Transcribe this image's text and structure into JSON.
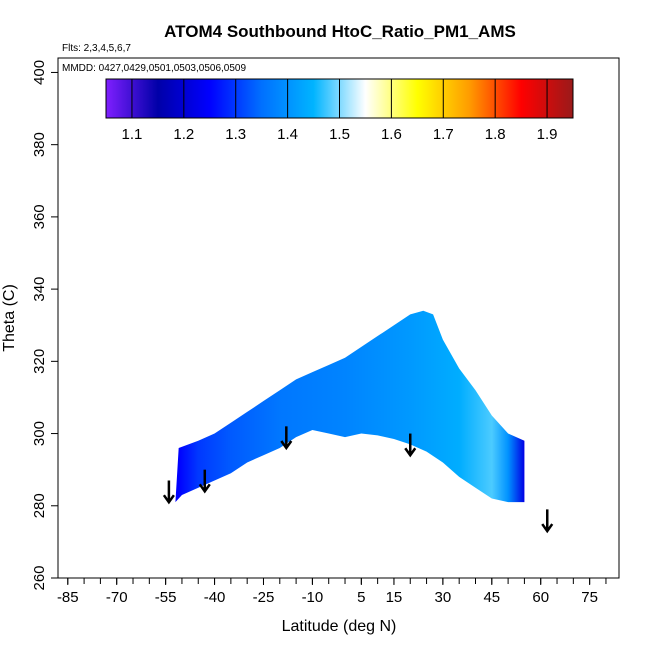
{
  "chart_data": {
    "type": "heatmap",
    "title": "ATOM4 Southbound HtoC_Ratio_PM1_AMS",
    "flights_label": "Flts: 2,3,4,5,6,7",
    "dates_label": "MMDD: 0427,0429,0501,0503,0506,0509",
    "xlabel": "Latitude (deg N)",
    "ylabel": "Theta (C)",
    "xlim": [
      -88,
      84
    ],
    "ylim": [
      260,
      404
    ],
    "x_tick_labels": [
      "-85",
      "-70",
      "-55",
      "-40",
      "-25",
      "-10",
      "5",
      "15",
      "30",
      "45",
      "60",
      "75"
    ],
    "x_tick_values": [
      -85,
      -70,
      -55,
      -40,
      -25,
      -10,
      5,
      15,
      30,
      45,
      60,
      75
    ],
    "x_minor_ticks": [
      -85,
      -80,
      -75,
      -70,
      -65,
      -60,
      -55,
      -50,
      -45,
      -40,
      -35,
      -30,
      -25,
      -20,
      -15,
      -10,
      -5,
      0,
      5,
      10,
      15,
      20,
      25,
      30,
      35,
      40,
      45,
      50,
      55,
      60,
      65,
      70,
      75,
      80
    ],
    "y_tick_values": [
      260,
      280,
      300,
      320,
      340,
      360,
      380,
      400
    ],
    "y_tick_labels": [
      "260",
      "280",
      "300",
      "320",
      "340",
      "360",
      "380",
      "400"
    ],
    "colorbar": {
      "range": [
        1.05,
        1.95
      ],
      "tick_values": [
        1.1,
        1.2,
        1.3,
        1.4,
        1.5,
        1.6,
        1.7,
        1.8,
        1.9
      ],
      "tick_labels": [
        "1.1",
        "1.2",
        "1.3",
        "1.4",
        "1.5",
        "1.6",
        "1.7",
        "1.8",
        "1.9"
      ],
      "colors": [
        "#7f1fff",
        "#0000a8",
        "#0000ff",
        "#0070ff",
        "#00b4ff",
        "#ffffff",
        "#ffff00",
        "#ff9c00",
        "#ff0000",
        "#9a1a1a"
      ]
    },
    "region_top_boundary": [
      {
        "lat": -51,
        "theta": 296
      },
      {
        "lat": -45,
        "theta": 298
      },
      {
        "lat": -40,
        "theta": 300
      },
      {
        "lat": -35,
        "theta": 303
      },
      {
        "lat": -30,
        "theta": 306
      },
      {
        "lat": -25,
        "theta": 309
      },
      {
        "lat": -20,
        "theta": 312
      },
      {
        "lat": -15,
        "theta": 315
      },
      {
        "lat": -10,
        "theta": 317
      },
      {
        "lat": -5,
        "theta": 319
      },
      {
        "lat": 0,
        "theta": 321
      },
      {
        "lat": 5,
        "theta": 324
      },
      {
        "lat": 10,
        "theta": 327
      },
      {
        "lat": 15,
        "theta": 330
      },
      {
        "lat": 20,
        "theta": 333
      },
      {
        "lat": 24,
        "theta": 334
      },
      {
        "lat": 27,
        "theta": 333
      },
      {
        "lat": 30,
        "theta": 326
      },
      {
        "lat": 35,
        "theta": 318
      },
      {
        "lat": 40,
        "theta": 312
      },
      {
        "lat": 45,
        "theta": 305
      },
      {
        "lat": 50,
        "theta": 300
      },
      {
        "lat": 55,
        "theta": 298
      }
    ],
    "region_bottom_boundary": [
      {
        "lat": 55,
        "theta": 281
      },
      {
        "lat": 50,
        "theta": 281
      },
      {
        "lat": 45,
        "theta": 282
      },
      {
        "lat": 40,
        "theta": 285
      },
      {
        "lat": 35,
        "theta": 288
      },
      {
        "lat": 30,
        "theta": 292
      },
      {
        "lat": 25,
        "theta": 295
      },
      {
        "lat": 20,
        "theta": 297
      },
      {
        "lat": 15,
        "theta": 298.5
      },
      {
        "lat": 10,
        "theta": 299.5
      },
      {
        "lat": 5,
        "theta": 300
      },
      {
        "lat": 0,
        "theta": 299
      },
      {
        "lat": -5,
        "theta": 300
      },
      {
        "lat": -10,
        "theta": 301
      },
      {
        "lat": -15,
        "theta": 299
      },
      {
        "lat": -20,
        "theta": 296
      },
      {
        "lat": -25,
        "theta": 294
      },
      {
        "lat": -30,
        "theta": 292
      },
      {
        "lat": -35,
        "theta": 289
      },
      {
        "lat": -40,
        "theta": 287
      },
      {
        "lat": -45,
        "theta": 285
      },
      {
        "lat": -50,
        "theta": 283
      },
      {
        "lat": -52,
        "theta": 281
      }
    ],
    "region_value_profile": [
      {
        "lat": -51,
        "value": 1.25
      },
      {
        "lat": -45,
        "value": 1.3
      },
      {
        "lat": -35,
        "value": 1.33
      },
      {
        "lat": -20,
        "value": 1.36
      },
      {
        "lat": 0,
        "value": 1.38
      },
      {
        "lat": 20,
        "value": 1.41
      },
      {
        "lat": 35,
        "value": 1.44
      },
      {
        "lat": 45,
        "value": 1.48
      },
      {
        "lat": 50,
        "value": 1.4
      },
      {
        "lat": 55,
        "value": 1.22
      }
    ],
    "arrows": [
      {
        "lat": -54,
        "theta_top": 287,
        "theta_tip": 281
      },
      {
        "lat": -43,
        "theta_top": 290,
        "theta_tip": 284
      },
      {
        "lat": -18,
        "theta_top": 302,
        "theta_tip": 296
      },
      {
        "lat": 20,
        "theta_top": 300,
        "theta_tip": 294
      },
      {
        "lat": 62,
        "theta_top": 279,
        "theta_tip": 273
      }
    ]
  }
}
